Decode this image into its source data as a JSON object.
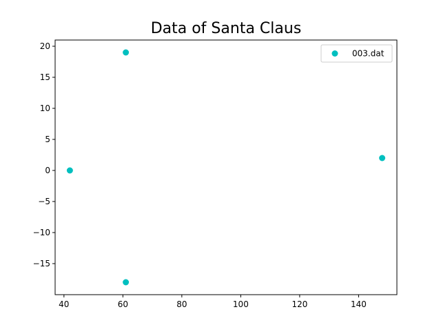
{
  "chart_data": {
    "type": "scatter",
    "title": "Data of Santa Claus",
    "xlabel": "",
    "ylabel": "",
    "xlim": [
      37,
      153
    ],
    "ylim": [
      -20,
      21
    ],
    "xticks": [
      40,
      60,
      80,
      100,
      120,
      140
    ],
    "yticks": [
      -15,
      -10,
      -5,
      0,
      5,
      10,
      15,
      20
    ],
    "xtick_labels": [
      "40",
      "60",
      "80",
      "100",
      "120",
      "140"
    ],
    "ytick_labels": [
      "−15",
      "−10",
      "−5",
      "0",
      "5",
      "10",
      "15",
      "20"
    ],
    "grid": false,
    "legend": {
      "position": "top-right"
    },
    "series": [
      {
        "name": "003.dat",
        "color": "#00bfbf",
        "x": [
          42,
          61,
          61,
          148
        ],
        "y": [
          0,
          19,
          -18,
          2
        ]
      }
    ]
  }
}
